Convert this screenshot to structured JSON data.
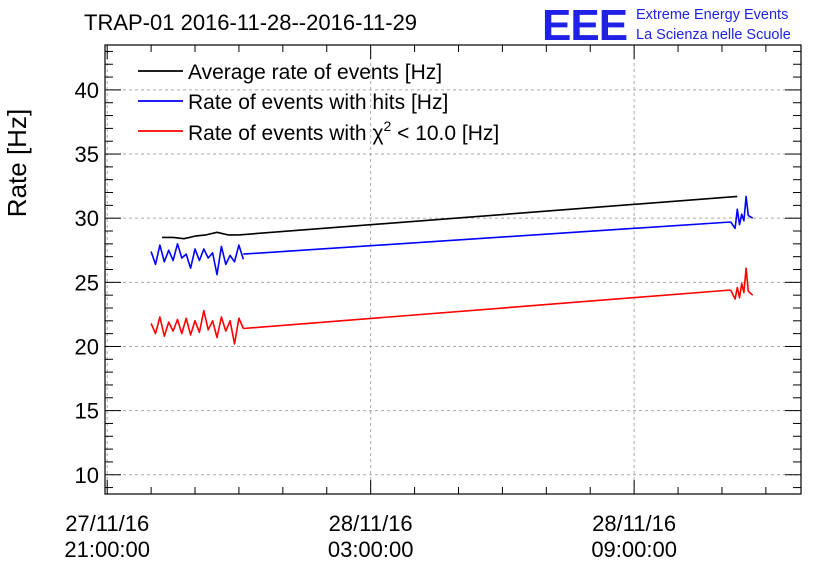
{
  "header": {
    "title": "TRAP-01 2016-11-28--2016-11-29",
    "brand_logo": "EEE",
    "brand_line1": "Extreme Energy Events",
    "brand_line2": "La Scienza nelle Scuole"
  },
  "chart_data": {
    "type": "line",
    "title": "TRAP-01 2016-11-28--2016-11-29",
    "xlabel": "",
    "ylabel": "Rate [Hz]",
    "ylim": [
      8.5,
      43.5
    ],
    "xlim_hours": [
      -0.05,
      15.8
    ],
    "yticks": [
      10,
      15,
      20,
      25,
      30,
      35,
      40
    ],
    "xticks": [
      {
        "hours": 0,
        "date": "27/11/16",
        "time": "21:00:00"
      },
      {
        "hours": 6,
        "date": "28/11/16",
        "time": "03:00:00"
      },
      {
        "hours": 12,
        "date": "28/11/16",
        "time": "09:00:00"
      }
    ],
    "grid": true,
    "legend_position": "top-left",
    "series": [
      {
        "name": "Average rate of events [Hz]",
        "color": "#000000",
        "segments": [
          {
            "x": [
              1.25,
              1.5,
              1.75,
              2.0,
              2.25,
              2.5,
              2.75,
              3.0
            ],
            "y": [
              28.5,
              28.5,
              28.4,
              28.6,
              28.7,
              28.9,
              28.7,
              28.7
            ]
          },
          {
            "x": [
              3.0,
              14.35
            ],
            "y": [
              28.7,
              31.7
            ]
          }
        ]
      },
      {
        "name": "Rate of events with hits [Hz]",
        "color": "#0000ff",
        "segments": [
          {
            "x": [
              1.0,
              1.1,
              1.2,
              1.3,
              1.4,
              1.5,
              1.6,
              1.7,
              1.8,
              1.9,
              2.0,
              2.1,
              2.2,
              2.3,
              2.4,
              2.5,
              2.6,
              2.7,
              2.8,
              2.9,
              3.0,
              3.1
            ],
            "y": [
              27.4,
              26.4,
              27.9,
              26.6,
              27.5,
              26.7,
              28.0,
              26.9,
              27.2,
              26.1,
              27.6,
              26.7,
              27.6,
              26.9,
              27.3,
              25.6,
              27.8,
              26.4,
              27.1,
              26.6,
              27.9,
              26.8
            ]
          },
          {
            "x": [
              3.1,
              14.2
            ],
            "y": [
              27.2,
              29.7
            ]
          },
          {
            "x": [
              14.2,
              14.3,
              14.35,
              14.4,
              14.45,
              14.5,
              14.55,
              14.6,
              14.7
            ],
            "y": [
              29.7,
              29.2,
              30.7,
              29.5,
              30.3,
              29.8,
              31.7,
              30.2,
              30.0
            ]
          }
        ]
      },
      {
        "name": "Rate of events with χ² < 10.0 [Hz]",
        "color": "#ff0000",
        "segments": [
          {
            "x": [
              1.0,
              1.1,
              1.2,
              1.3,
              1.4,
              1.5,
              1.6,
              1.7,
              1.8,
              1.9,
              2.0,
              2.1,
              2.2,
              2.3,
              2.4,
              2.5,
              2.6,
              2.7,
              2.8,
              2.9,
              3.0,
              3.1
            ],
            "y": [
              21.8,
              21.0,
              22.3,
              20.8,
              21.9,
              21.2,
              22.1,
              21.0,
              22.2,
              20.9,
              22.0,
              21.1,
              22.8,
              21.3,
              22.0,
              20.7,
              22.3,
              21.2,
              22.0,
              20.2,
              22.2,
              21.4
            ]
          },
          {
            "x": [
              3.1,
              14.2
            ],
            "y": [
              21.4,
              24.4
            ]
          },
          {
            "x": [
              14.2,
              14.3,
              14.35,
              14.4,
              14.45,
              14.5,
              14.55,
              14.6,
              14.7
            ],
            "y": [
              24.4,
              23.7,
              24.6,
              23.8,
              24.9,
              24.2,
              26.1,
              24.3,
              24.0
            ]
          }
        ]
      }
    ],
    "legend": [
      {
        "label_main": "Average rate of events [Hz]",
        "color": "#000000"
      },
      {
        "label_main": "Rate of events with hits [Hz]",
        "color": "#0000ff"
      },
      {
        "label_pre": "Rate of events with ",
        "label_sym": "χ",
        "label_sup": "2",
        "label_post": " < 10.0 [Hz]",
        "color": "#ff0000"
      }
    ]
  }
}
